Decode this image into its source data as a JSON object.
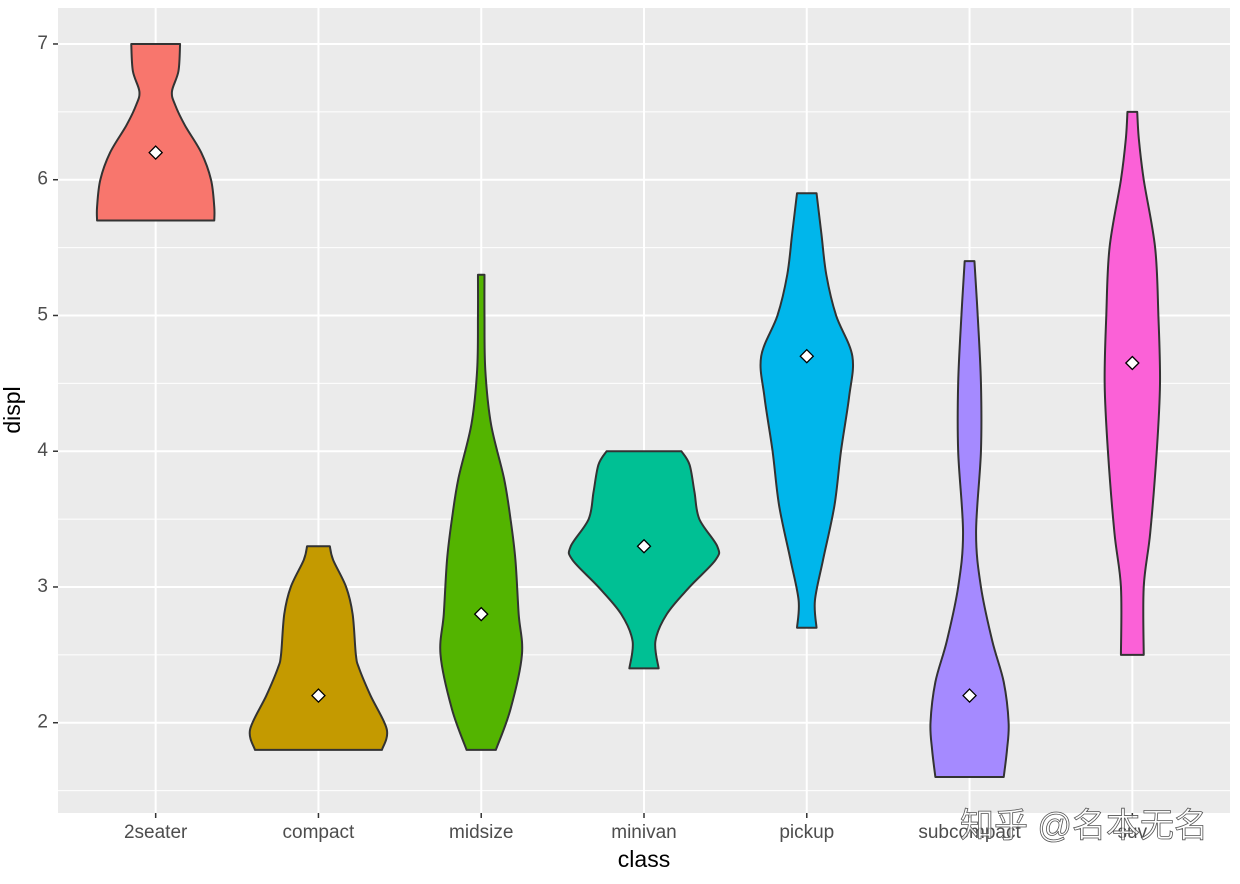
{
  "chart_data": {
    "type": "violin",
    "x_label": "class",
    "y_label": "displ",
    "categories": [
      "2seater",
      "compact",
      "midsize",
      "minivan",
      "pickup",
      "subcompact",
      "suv"
    ],
    "colors": [
      "#F8766D",
      "#C49A00",
      "#53B400",
      "#00C094",
      "#00B6EB",
      "#A58AFF",
      "#FB61D7"
    ],
    "violins": [
      {
        "y": [
          5.7,
          5.8,
          6.0,
          6.2,
          6.4,
          6.55,
          6.65,
          6.8,
          7.0
        ],
        "width": [
          0.36,
          0.36,
          0.34,
          0.28,
          0.18,
          0.12,
          0.1,
          0.14,
          0.15
        ]
      },
      {
        "y": [
          1.8,
          1.95,
          2.2,
          2.4,
          2.5,
          2.8,
          3.0,
          3.2,
          3.3
        ],
        "width": [
          0.39,
          0.42,
          0.32,
          0.25,
          0.23,
          0.21,
          0.17,
          0.09,
          0.07
        ]
      },
      {
        "y": [
          1.8,
          2.1,
          2.5,
          2.8,
          3.2,
          3.5,
          3.8,
          4.2,
          4.6,
          5.0,
          5.3
        ],
        "width": [
          0.09,
          0.18,
          0.25,
          0.23,
          0.21,
          0.18,
          0.14,
          0.06,
          0.025,
          0.02,
          0.02
        ]
      },
      {
        "y": [
          2.4,
          2.6,
          2.8,
          3.0,
          3.2,
          3.3,
          3.5,
          3.7,
          3.9,
          4.0
        ],
        "width": [
          0.09,
          0.07,
          0.14,
          0.28,
          0.44,
          0.45,
          0.34,
          0.31,
          0.28,
          0.23
        ]
      },
      {
        "y": [
          2.7,
          2.9,
          3.2,
          3.6,
          4.0,
          4.4,
          4.7,
          5.0,
          5.3,
          5.6,
          5.9
        ],
        "width": [
          0.06,
          0.05,
          0.1,
          0.17,
          0.21,
          0.26,
          0.28,
          0.18,
          0.12,
          0.09,
          0.06
        ]
      },
      {
        "y": [
          1.6,
          1.8,
          2.0,
          2.3,
          2.6,
          3.0,
          3.4,
          4.0,
          4.5,
          5.0,
          5.4
        ],
        "width": [
          0.21,
          0.23,
          0.24,
          0.21,
          0.14,
          0.07,
          0.04,
          0.07,
          0.07,
          0.05,
          0.03
        ]
      },
      {
        "y": [
          2.5,
          3.0,
          3.4,
          4.0,
          4.5,
          5.0,
          5.5,
          6.0,
          6.3,
          6.5
        ],
        "width": [
          0.07,
          0.07,
          0.11,
          0.15,
          0.17,
          0.16,
          0.14,
          0.07,
          0.04,
          0.03
        ]
      }
    ],
    "medians": [
      6.2,
      2.2,
      2.8,
      3.3,
      4.7,
      2.2,
      4.65
    ],
    "ylim": [
      1.335,
      7.265
    ],
    "yticks": [
      2,
      3,
      4,
      5,
      6,
      7
    ],
    "minor_yticks": [
      1.5,
      2.5,
      3.5,
      4.5,
      5.5,
      6.5
    ],
    "grid": true,
    "watermark": "知乎 @名本无名"
  }
}
